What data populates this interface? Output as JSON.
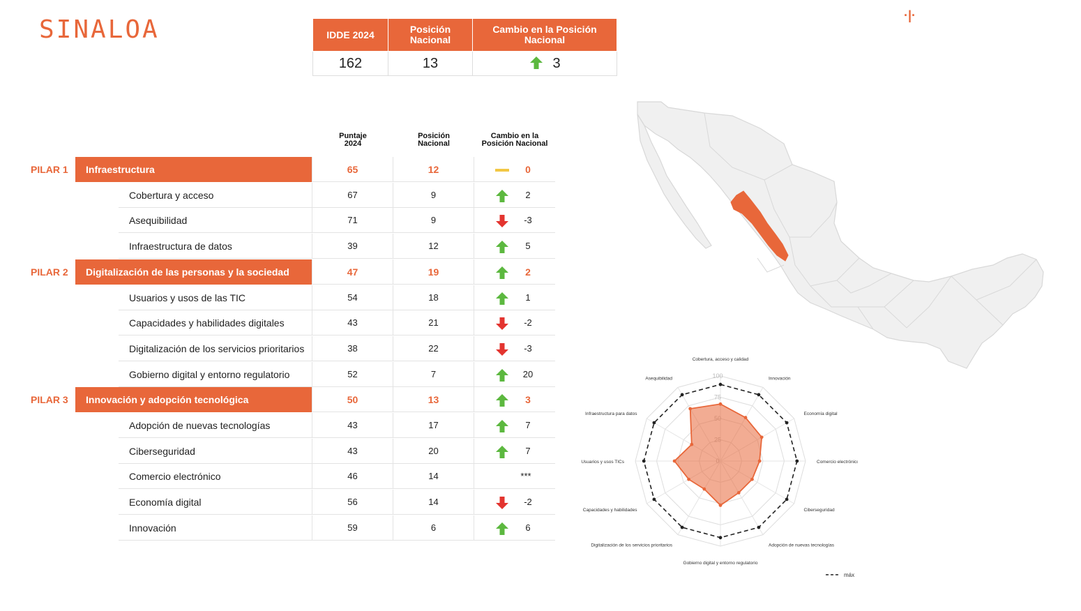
{
  "state": "SINALOA",
  "summary": {
    "headers": [
      "IDDE 2024",
      "Posición Nacional",
      "Cambio en la Posición Nacional"
    ],
    "idde": "162",
    "position": "13",
    "change": "3",
    "change_icon": "arrow-up-icon"
  },
  "columns": {
    "score": [
      "Puntaje",
      "2024"
    ],
    "position": [
      "Posición",
      "Nacional"
    ],
    "change": [
      "Cambio en la",
      "Posición Nacional"
    ]
  },
  "rows": [
    {
      "type": "pilar",
      "pilar": "PILAR 1",
      "name": "Infraestructura",
      "score": "65",
      "pos": "12",
      "change": "0",
      "icon": "dash"
    },
    {
      "type": "sub",
      "name": "Cobertura y acceso",
      "score": "67",
      "pos": "9",
      "change": "2",
      "icon": "up"
    },
    {
      "type": "sub",
      "name": "Asequibilidad",
      "score": "71",
      "pos": "9",
      "change": "-3",
      "icon": "down"
    },
    {
      "type": "sub",
      "name": "Infraestructura de datos",
      "score": "39",
      "pos": "12",
      "change": "5",
      "icon": "up"
    },
    {
      "type": "pilar",
      "pilar": "PILAR 2",
      "name": "Digitalización de las personas y la sociedad",
      "score": "47",
      "pos": "19",
      "change": "2",
      "icon": "up"
    },
    {
      "type": "sub",
      "name": "Usuarios y usos de las TIC",
      "score": "54",
      "pos": "18",
      "change": "1",
      "icon": "up"
    },
    {
      "type": "sub",
      "name": "Capacidades y habilidades digitales",
      "score": "43",
      "pos": "21",
      "change": "-2",
      "icon": "down"
    },
    {
      "type": "sub",
      "name": "Digitalización de los servicios prioritarios",
      "score": "38",
      "pos": "22",
      "change": "-3",
      "icon": "down"
    },
    {
      "type": "sub",
      "name": "Gobierno digital y entorno regulatorio",
      "score": "52",
      "pos": "7",
      "change": "20",
      "icon": "up"
    },
    {
      "type": "pilar",
      "pilar": "PILAR 3",
      "name": "Innovación y adopción tecnológica",
      "score": "50",
      "pos": "13",
      "change": "3",
      "icon": "up"
    },
    {
      "type": "sub",
      "name": "Adopción de nuevas tecnologías",
      "score": "43",
      "pos": "17",
      "change": "7",
      "icon": "up"
    },
    {
      "type": "sub",
      "name": "Ciberseguridad",
      "score": "43",
      "pos": "20",
      "change": "7",
      "icon": "up"
    },
    {
      "type": "sub",
      "name": "Comercio electrónico",
      "score": "46",
      "pos": "14",
      "change": "***",
      "icon": "none"
    },
    {
      "type": "sub",
      "name": "Economía digital",
      "score": "56",
      "pos": "14",
      "change": "-2",
      "icon": "down"
    },
    {
      "type": "sub",
      "name": "Innovación",
      "score": "59",
      "pos": "6",
      "change": "6",
      "icon": "up"
    }
  ],
  "colors": {
    "accent": "#e8673a",
    "up": "#5cb83f",
    "down": "#e3342f",
    "neutral": "#f2c744",
    "map_base": "#f0f0f0",
    "map_border": "#d8d8d8"
  },
  "chart_data": {
    "type": "radar",
    "categories": [
      "Cobertura, acceso y calidad",
      "Innovación",
      "Economía digital",
      "Comercio electrónico",
      "Ciberseguridad",
      "Adopción de nuevas tecnologías",
      "Gobierno digital y entorno regulatorio",
      "Digitalización de los servicios prioritarios",
      "Capacidades y habilidades",
      "Usuarios y usos TICs",
      "Infraestructura para datos",
      "Asequibilidad"
    ],
    "series": [
      {
        "values": [
          67,
          59,
          56,
          46,
          43,
          43,
          52,
          38,
          43,
          54,
          39,
          71
        ]
      },
      {
        "name": "máx",
        "values": [
          90,
          90,
          90,
          90,
          90,
          90,
          90,
          90,
          90,
          90,
          90,
          90
        ]
      }
    ],
    "rlim": [
      0,
      100
    ],
    "ticks": [
      0,
      25,
      50,
      75,
      100
    ]
  }
}
